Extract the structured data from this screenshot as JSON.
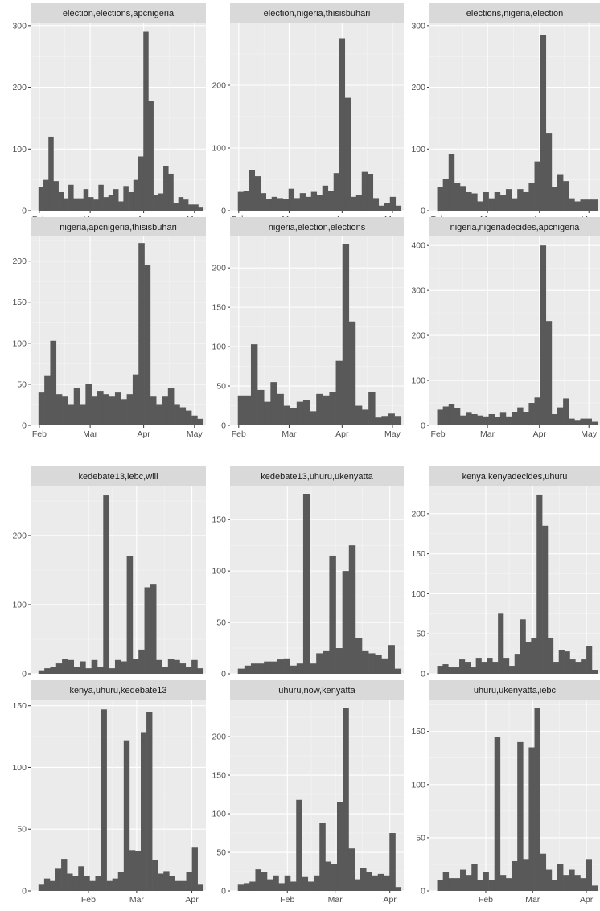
{
  "chart_data": [
    {
      "type": "bar",
      "title": "election,elections,apcnigeria",
      "x_ticks": [
        "Feb",
        "Mar",
        "Apr",
        "May"
      ],
      "y_ticks": [
        0,
        100,
        200,
        300
      ],
      "ylim": [
        0,
        305
      ],
      "grid": true,
      "values": [
        38,
        50,
        120,
        48,
        30,
        20,
        42,
        20,
        20,
        35,
        22,
        18,
        42,
        22,
        25,
        35,
        15,
        40,
        30,
        50,
        88,
        290,
        178,
        25,
        28,
        72,
        60,
        12,
        22,
        18,
        10,
        10,
        5
      ]
    },
    {
      "type": "bar",
      "title": "election,nigeria,thisisbuhari",
      "x_ticks": [
        "Feb",
        "Mar",
        "Apr",
        "May"
      ],
      "y_ticks": [
        0,
        100,
        200
      ],
      "ylim": [
        0,
        300
      ],
      "grid": true,
      "values": [
        30,
        32,
        65,
        55,
        28,
        18,
        22,
        20,
        18,
        35,
        20,
        28,
        22,
        30,
        25,
        40,
        32,
        60,
        275,
        180,
        22,
        25,
        62,
        58,
        20,
        8,
        12,
        22,
        8
      ]
    },
    {
      "type": "bar",
      "title": "elections,nigeria,election",
      "x_ticks": [
        "Feb",
        "Mar",
        "Apr",
        "May"
      ],
      "y_ticks": [
        0,
        100,
        200,
        300
      ],
      "ylim": [
        0,
        305
      ],
      "grid": true,
      "values": [
        38,
        52,
        92,
        45,
        40,
        30,
        28,
        15,
        30,
        20,
        30,
        25,
        35,
        20,
        35,
        30,
        45,
        80,
        285,
        125,
        38,
        58,
        48,
        20,
        15,
        18,
        18,
        18
      ]
    },
    {
      "type": "bar",
      "title": "nigeria,apcnigeria,thisisbuhari",
      "x_ticks": [
        "Feb",
        "Mar",
        "Apr",
        "May"
      ],
      "y_ticks": [
        0,
        50,
        100,
        150,
        200
      ],
      "ylim": [
        0,
        230
      ],
      "grid": true,
      "values": [
        40,
        60,
        103,
        38,
        35,
        25,
        45,
        25,
        50,
        35,
        42,
        38,
        35,
        40,
        32,
        38,
        62,
        222,
        195,
        35,
        25,
        35,
        45,
        25,
        22,
        18,
        12,
        8
      ]
    },
    {
      "type": "bar",
      "title": "nigeria,election,elections",
      "x_ticks": [
        "Feb",
        "Mar",
        "Apr",
        "May"
      ],
      "y_ticks": [
        0,
        50,
        100,
        150,
        200
      ],
      "ylim": [
        0,
        240
      ],
      "grid": true,
      "values": [
        38,
        38,
        103,
        45,
        30,
        55,
        40,
        25,
        22,
        30,
        32,
        18,
        40,
        38,
        42,
        82,
        230,
        132,
        25,
        20,
        42,
        10,
        12,
        15,
        12
      ]
    },
    {
      "type": "bar",
      "title": "nigeria,nigeriadecides,apcnigeria",
      "x_ticks": [
        "Feb",
        "Mar",
        "Apr",
        "May"
      ],
      "y_ticks": [
        0,
        100,
        200,
        300,
        400
      ],
      "ylim": [
        0,
        420
      ],
      "grid": true,
      "values": [
        35,
        42,
        48,
        38,
        22,
        28,
        25,
        22,
        20,
        25,
        18,
        28,
        20,
        30,
        40,
        30,
        50,
        62,
        400,
        232,
        25,
        40,
        60,
        15,
        12,
        15,
        15,
        8
      ]
    },
    {
      "type": "bar",
      "title": "kedebate13,iebc,will",
      "x_ticks": [],
      "y_ticks": [
        0,
        100,
        200
      ],
      "ylim": [
        0,
        272
      ],
      "grid": true,
      "values": [
        5,
        8,
        10,
        15,
        22,
        20,
        10,
        18,
        8,
        20,
        10,
        258,
        8,
        20,
        18,
        170,
        22,
        35,
        125,
        130,
        20,
        10,
        22,
        20,
        15,
        10,
        20,
        8
      ]
    },
    {
      "type": "bar",
      "title": "kedebate13,uhuru,ukenyatta",
      "x_ticks": [],
      "y_ticks": [
        0,
        50,
        100,
        150
      ],
      "ylim": [
        0,
        183
      ],
      "grid": true,
      "values": [
        5,
        8,
        10,
        10,
        12,
        12,
        14,
        15,
        8,
        10,
        175,
        10,
        20,
        22,
        115,
        25,
        100,
        125,
        35,
        22,
        20,
        18,
        15,
        28,
        5
      ]
    },
    {
      "type": "bar",
      "title": "kenya,kenyadecides,uhuru",
      "x_ticks": [],
      "y_ticks": [
        0,
        50,
        100,
        150,
        200
      ],
      "ylim": [
        0,
        235
      ],
      "grid": true,
      "values": [
        10,
        12,
        8,
        8,
        18,
        15,
        8,
        20,
        15,
        20,
        15,
        75,
        20,
        10,
        25,
        68,
        40,
        45,
        223,
        185,
        45,
        15,
        30,
        28,
        18,
        15,
        18,
        35,
        5
      ]
    },
    {
      "type": "bar",
      "title": "kenya,uhuru,kedebate13",
      "x_ticks": [
        "Feb",
        "Mar",
        "Apr"
      ],
      "y_ticks": [
        0,
        50,
        100,
        150
      ],
      "ylim": [
        0,
        155
      ],
      "grid": true,
      "values": [
        5,
        10,
        8,
        18,
        26,
        14,
        12,
        20,
        12,
        8,
        12,
        147,
        8,
        10,
        15,
        122,
        33,
        32,
        128,
        145,
        25,
        14,
        16,
        12,
        8,
        8,
        15,
        35,
        5
      ]
    },
    {
      "type": "bar",
      "title": "uhuru,now,kenyatta",
      "x_ticks": [
        "Feb",
        "Mar",
        "Apr"
      ],
      "y_ticks": [
        0,
        50,
        100,
        150,
        200
      ],
      "ylim": [
        0,
        248
      ],
      "grid": true,
      "values": [
        8,
        10,
        12,
        28,
        25,
        15,
        20,
        10,
        20,
        12,
        118,
        18,
        12,
        20,
        88,
        38,
        35,
        115,
        237,
        55,
        15,
        30,
        25,
        20,
        22,
        20,
        75,
        5
      ]
    },
    {
      "type": "bar",
      "title": "uhuru,ukenyatta,iebc",
      "x_ticks": [
        "Feb",
        "Mar",
        "Apr"
      ],
      "y_ticks": [
        0,
        50,
        100,
        150
      ],
      "ylim": [
        0,
        180
      ],
      "grid": true,
      "values": [
        10,
        18,
        12,
        12,
        20,
        15,
        25,
        10,
        18,
        10,
        145,
        15,
        12,
        28,
        140,
        30,
        135,
        172,
        35,
        20,
        10,
        25,
        15,
        20,
        15,
        12,
        30,
        5
      ]
    }
  ]
}
